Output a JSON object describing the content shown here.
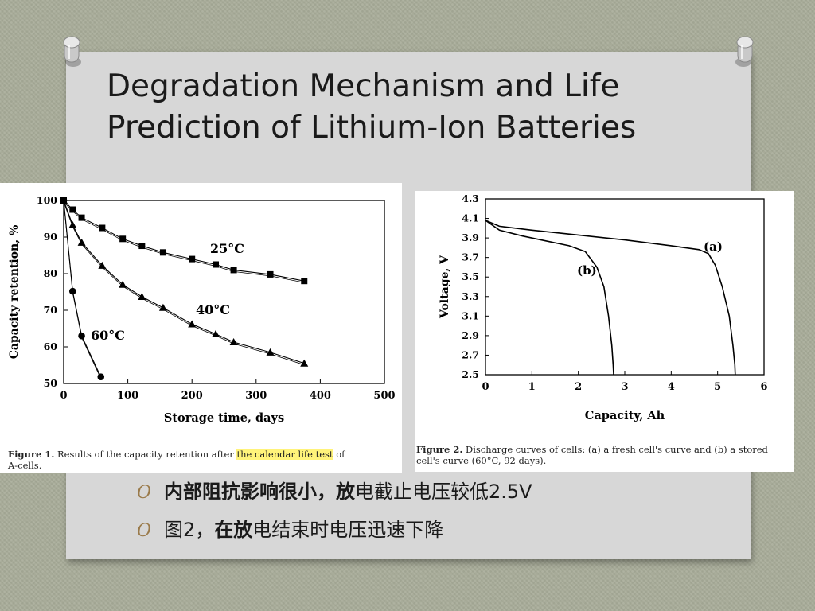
{
  "slide": {
    "title_line1": "Degradation Mechanism and Life",
    "title_line2": "Prediction of Lithium-Ion Batteries",
    "colors": {
      "slide_bg": "#d7d7d7",
      "background": "#a9ad9a",
      "bullet_mark": "#9a7a4a",
      "highlight": "#fff37a"
    }
  },
  "figure1": {
    "caption_label": "Figure 1.",
    "caption_pre": "Results of the capacity retention after",
    "caption_highlight": "the calendar life test",
    "caption_post": "of",
    "caption_line2": "A-cells."
  },
  "figure2": {
    "caption_label": "Figure 2.",
    "caption_line1": "Discharge curves of cells: (a) a fresh cell's curve and (b) a stored",
    "caption_line2": "cell's curve (60°C, 92 days)."
  },
  "bullets": [
    {
      "mark": "O",
      "bold": "内部阻抗影响很小，放",
      "rest": "电截止电压较低2.5V"
    },
    {
      "mark": "O",
      "pre": "图2，",
      "bold": "在放",
      "rest": "电结束时电压迅速下降"
    }
  ],
  "chart_data": [
    {
      "type": "line",
      "xlabel": "Storage time, days",
      "ylabel": "Capacity retention, %",
      "xlim": [
        0,
        500
      ],
      "ylim": [
        50,
        100
      ],
      "xticks": [
        0,
        100,
        200,
        300,
        400,
        500
      ],
      "yticks": [
        50,
        60,
        70,
        80,
        90,
        100
      ],
      "series": [
        {
          "name": "25°C",
          "marker": "square",
          "x": [
            0,
            14,
            28,
            60,
            92,
            122,
            155,
            200,
            237,
            265,
            322,
            375
          ],
          "y": [
            100,
            97.5,
            95.3,
            92.5,
            89.5,
            87.6,
            85.8,
            84.0,
            82.5,
            81.0,
            79.8,
            78.0
          ]
        },
        {
          "name": "40°C",
          "marker": "triangle",
          "x": [
            0,
            14,
            28,
            60,
            92,
            122,
            155,
            200,
            237,
            265,
            322,
            375
          ],
          "y": [
            100,
            93.3,
            88.5,
            82.2,
            77.0,
            73.7,
            70.7,
            66.2,
            63.5,
            61.3,
            58.5,
            55.5
          ]
        },
        {
          "name": "60°C",
          "marker": "circle",
          "x": [
            0,
            14,
            28,
            58
          ],
          "y": [
            100,
            75.2,
            63.0,
            51.8
          ]
        }
      ]
    },
    {
      "type": "line",
      "xlabel": "Capacity, Ah",
      "ylabel": "Voltage, V",
      "xlim": [
        0,
        6
      ],
      "ylim": [
        2.5,
        4.3
      ],
      "xticks": [
        0,
        1,
        2,
        3,
        4,
        5,
        6
      ],
      "yticks": [
        2.5,
        2.7,
        2.9,
        3.1,
        3.3,
        3.5,
        3.7,
        3.9,
        4.1,
        4.3
      ],
      "series": [
        {
          "name": "(a)",
          "x": [
            0,
            0.3,
            1.0,
            2.0,
            3.0,
            4.0,
            4.6,
            4.8,
            4.95,
            5.1,
            5.25,
            5.33,
            5.37,
            5.38
          ],
          "y": [
            4.08,
            4.02,
            3.98,
            3.93,
            3.88,
            3.82,
            3.78,
            3.74,
            3.62,
            3.4,
            3.1,
            2.8,
            2.6,
            2.5
          ]
        },
        {
          "name": "(b)",
          "x": [
            0,
            0.3,
            0.8,
            1.3,
            1.8,
            2.15,
            2.4,
            2.55,
            2.65,
            2.72,
            2.75,
            2.76
          ],
          "y": [
            4.08,
            3.98,
            3.92,
            3.87,
            3.82,
            3.76,
            3.6,
            3.4,
            3.1,
            2.8,
            2.6,
            2.5
          ]
        }
      ]
    }
  ]
}
